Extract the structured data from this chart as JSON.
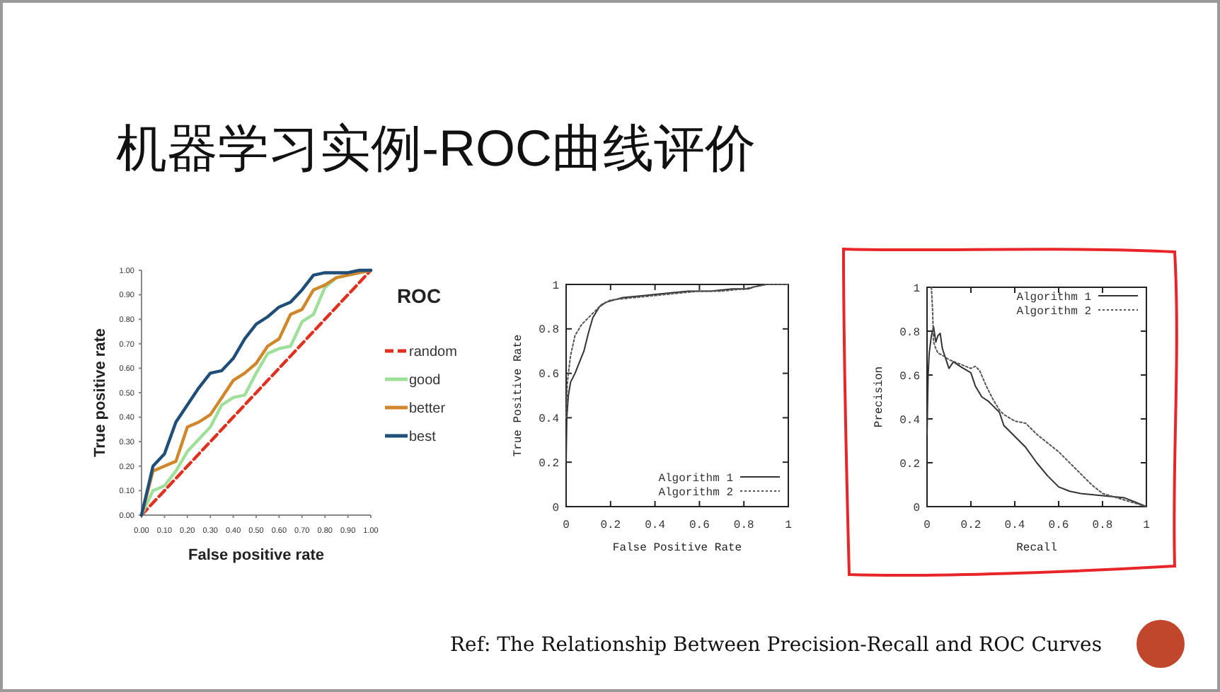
{
  "chart_data": [
    {
      "type": "line",
      "title": "机器学习实例-ROC曲线评价",
      "xlabel": "False positive rate",
      "ylabel": "True positive rate",
      "legend_title": "ROC",
      "legend": "right",
      "xlim": [
        0,
        1
      ],
      "ylim": [
        0,
        1
      ],
      "xticks": [
        {
          "value": 0,
          "label": "0.00"
        },
        {
          "value": 0.1,
          "label": "0.10"
        },
        {
          "value": 0.2,
          "label": "0.20"
        },
        {
          "value": 0.3,
          "label": "0.30"
        },
        {
          "value": 0.4,
          "label": "0.40"
        },
        {
          "value": 0.5,
          "label": "0.50"
        },
        {
          "value": 0.6,
          "label": "0.60"
        },
        {
          "value": 0.7,
          "label": "0.70"
        },
        {
          "value": 0.8,
          "label": "0.80"
        },
        {
          "value": 0.9,
          "label": "0.90"
        },
        {
          "value": 1,
          "label": "1.00"
        }
      ],
      "yticks": [
        {
          "value": 0,
          "label": "0.00"
        },
        {
          "value": 0.1,
          "label": "0.10"
        },
        {
          "value": 0.2,
          "label": "0.20"
        },
        {
          "value": 0.3,
          "label": "0.30"
        },
        {
          "value": 0.4,
          "label": "0.40"
        },
        {
          "value": 0.5,
          "label": "0.50"
        },
        {
          "value": 0.6,
          "label": "0.60"
        },
        {
          "value": 0.7,
          "label": "0.70"
        },
        {
          "value": 0.8,
          "label": "0.80"
        },
        {
          "value": 0.9,
          "label": "0.90"
        },
        {
          "value": 1,
          "label": "1.00"
        }
      ],
      "series": [
        {
          "name": "random",
          "color": "#e03020",
          "line_style": "dashed",
          "x": [
            0,
            1
          ],
          "values": [
            0,
            1
          ]
        },
        {
          "name": "good",
          "color": "#9ee09a",
          "x": [
            0,
            0.05,
            0.1,
            0.15,
            0.2,
            0.25,
            0.3,
            0.35,
            0.4,
            0.45,
            0.5,
            0.55,
            0.6,
            0.65,
            0.7,
            0.75,
            0.8,
            0.85,
            0.9,
            0.95,
            1
          ],
          "values": [
            0,
            0.1,
            0.12,
            0.18,
            0.26,
            0.31,
            0.36,
            0.45,
            0.48,
            0.49,
            0.58,
            0.66,
            0.68,
            0.69,
            0.79,
            0.82,
            0.93,
            0.97,
            0.98,
            0.99,
            1
          ]
        },
        {
          "name": "better",
          "color": "#d0862a",
          "x": [
            0,
            0.05,
            0.1,
            0.15,
            0.2,
            0.25,
            0.3,
            0.35,
            0.4,
            0.45,
            0.5,
            0.55,
            0.6,
            0.65,
            0.7,
            0.75,
            0.8,
            0.85,
            0.9,
            0.95,
            1
          ],
          "values": [
            0,
            0.18,
            0.2,
            0.22,
            0.36,
            0.38,
            0.41,
            0.48,
            0.55,
            0.58,
            0.62,
            0.69,
            0.72,
            0.82,
            0.84,
            0.92,
            0.94,
            0.97,
            0.98,
            0.99,
            1
          ]
        },
        {
          "name": "best",
          "color": "#1f4e79",
          "x": [
            0,
            0.05,
            0.1,
            0.15,
            0.2,
            0.25,
            0.3,
            0.35,
            0.4,
            0.45,
            0.5,
            0.55,
            0.6,
            0.65,
            0.7,
            0.75,
            0.8,
            0.85,
            0.9,
            0.95,
            1
          ],
          "values": [
            0,
            0.2,
            0.25,
            0.38,
            0.45,
            0.52,
            0.58,
            0.59,
            0.64,
            0.72,
            0.78,
            0.81,
            0.85,
            0.87,
            0.92,
            0.98,
            0.99,
            0.99,
            0.99,
            1,
            1
          ]
        }
      ]
    },
    {
      "type": "line",
      "xlabel": "False Positive Rate",
      "ylabel": "True Positive Rate",
      "legend": "bottom right",
      "xlim": [
        0,
        1
      ],
      "ylim": [
        0,
        1
      ],
      "xticks": [
        0,
        0.2,
        0.4,
        0.6,
        0.8,
        1
      ],
      "yticks": [
        0,
        0.2,
        0.4,
        0.6,
        0.8,
        1
      ],
      "series": [
        {
          "name": "Algorithm 1",
          "color": "#333333",
          "line_style": "solid",
          "x": [
            0,
            0.003,
            0.01,
            0.02,
            0.04,
            0.06,
            0.08,
            0.1,
            0.12,
            0.15,
            0.18,
            0.25,
            0.35,
            0.45,
            0.55,
            0.65,
            0.75,
            0.82,
            0.85,
            0.9,
            1
          ],
          "values": [
            0.2,
            0.4,
            0.5,
            0.56,
            0.6,
            0.65,
            0.7,
            0.78,
            0.85,
            0.9,
            0.92,
            0.94,
            0.95,
            0.96,
            0.97,
            0.97,
            0.98,
            0.98,
            0.99,
            1,
            1
          ]
        },
        {
          "name": "Algorithm 2",
          "color": "#555555",
          "line_style": "dotted",
          "x": [
            0,
            0.005,
            0.01,
            0.02,
            0.04,
            0.07,
            0.1,
            0.13,
            0.16,
            0.2,
            0.3,
            0.4,
            0.5,
            0.6,
            0.7,
            0.8,
            0.85,
            0.9,
            1
          ],
          "values": [
            0.4,
            0.55,
            0.6,
            0.68,
            0.77,
            0.82,
            0.85,
            0.88,
            0.91,
            0.93,
            0.94,
            0.95,
            0.96,
            0.97,
            0.97,
            0.98,
            0.99,
            1,
            1
          ]
        }
      ]
    },
    {
      "type": "line",
      "xlabel": "Recall",
      "ylabel": "Precision",
      "legend": "top right",
      "xlim": [
        0,
        1
      ],
      "ylim": [
        0,
        1
      ],
      "xticks": [
        0,
        0.2,
        0.4,
        0.6,
        0.8,
        1
      ],
      "yticks": [
        0,
        0.2,
        0.4,
        0.6,
        0.8,
        1
      ],
      "annotations": [
        "Ref: The Relationship Between Precision-Recall and ROC Curves"
      ],
      "series": [
        {
          "name": "Algorithm 1",
          "color": "#333333",
          "line_style": "solid",
          "x": [
            0,
            0.005,
            0.01,
            0.02,
            0.03,
            0.04,
            0.05,
            0.06,
            0.07,
            0.09,
            0.1,
            0.12,
            0.15,
            0.2,
            0.22,
            0.25,
            0.28,
            0.3,
            0.33,
            0.35,
            0.4,
            0.45,
            0.5,
            0.55,
            0.6,
            0.65,
            0.7,
            0.8,
            0.9,
            0.95,
            1
          ],
          "values": [
            0.33,
            0.6,
            0.7,
            0.78,
            0.82,
            0.75,
            0.78,
            0.79,
            0.72,
            0.66,
            0.63,
            0.66,
            0.64,
            0.61,
            0.55,
            0.5,
            0.48,
            0.46,
            0.43,
            0.37,
            0.32,
            0.27,
            0.2,
            0.14,
            0.09,
            0.07,
            0.06,
            0.05,
            0.04,
            0.02,
            0
          ]
        },
        {
          "name": "Algorithm 2",
          "color": "#555555",
          "line_style": "dotted",
          "x": [
            0.02,
            0.025,
            0.03,
            0.04,
            0.05,
            0.07,
            0.1,
            0.15,
            0.2,
            0.22,
            0.24,
            0.27,
            0.3,
            0.33,
            0.35,
            0.4,
            0.45,
            0.5,
            0.55,
            0.6,
            0.65,
            0.7,
            0.75,
            0.8,
            0.9,
            1
          ],
          "values": [
            1,
            0.9,
            0.75,
            0.72,
            0.7,
            0.69,
            0.67,
            0.65,
            0.63,
            0.64,
            0.62,
            0.55,
            0.49,
            0.44,
            0.42,
            0.39,
            0.38,
            0.33,
            0.29,
            0.25,
            0.2,
            0.15,
            0.1,
            0.06,
            0.03,
            0
          ]
        }
      ]
    }
  ]
}
